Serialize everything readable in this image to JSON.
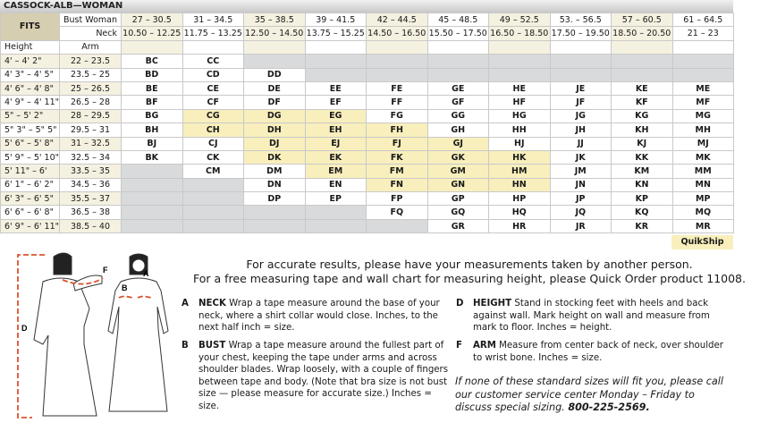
{
  "title": "CASSOCK-ALB—WOMAN",
  "header": {
    "fits": "FITS",
    "bust_label": "Bust Woman",
    "neck_label": "Neck",
    "height_label": "Height",
    "arm_label": "Arm",
    "bust": [
      "27 – 30.5",
      "31 – 34.5",
      "35 – 38.5",
      "39 – 41.5",
      "42 – 44.5",
      "45 – 48.5",
      "49 – 52.5",
      "53. – 56.5",
      "57 – 60.5",
      "61 – 64.5"
    ],
    "neck": [
      "10.50 – 12.25",
      "11.75 – 13.25",
      "12.50 – 14.50",
      "13.75 – 15.25",
      "14.50 – 16.50",
      "15.50 – 17.50",
      "16.50 – 18.50",
      "17.50 – 19.50",
      "18.50 – 20.50",
      "21 – 23"
    ]
  },
  "rows": [
    {
      "height": "4' – 4' 2\"",
      "arm": "22 – 23.5",
      "cells": [
        "BC",
        "CC",
        "",
        "",
        "",
        "",
        "",
        "",
        "",
        ""
      ]
    },
    {
      "height": "4' 3\" – 4' 5\"",
      "arm": "23.5 – 25",
      "cells": [
        "BD",
        "CD",
        "DD",
        "",
        "",
        "",
        "",
        "",
        "",
        ""
      ]
    },
    {
      "height": "4' 6\" – 4' 8\"",
      "arm": "25 – 26.5",
      "cells": [
        "BE",
        "CE",
        "DE",
        "EE",
        "FE",
        "GE",
        "HE",
        "JE",
        "KE",
        "ME"
      ]
    },
    {
      "height": "4' 9\" – 4' 11\"",
      "arm": "26.5 – 28",
      "cells": [
        "BF",
        "CF",
        "DF",
        "EF",
        "FF",
        "GF",
        "HF",
        "JF",
        "KF",
        "MF"
      ]
    },
    {
      "height": "5\" – 5' 2\"",
      "arm": "28 – 29.5",
      "cells": [
        "BG",
        "CG",
        "DG",
        "EG",
        "FG",
        "GG",
        "HG",
        "JG",
        "KG",
        "MG"
      ]
    },
    {
      "height": "5\" 3\" – 5\" 5\"",
      "arm": "29.5 – 31",
      "cells": [
        "BH",
        "CH",
        "DH",
        "EH",
        "FH",
        "GH",
        "HH",
        "JH",
        "KH",
        "MH"
      ]
    },
    {
      "height": "5' 6\" – 5' 8\"",
      "arm": "31 – 32.5",
      "cells": [
        "BJ",
        "CJ",
        "DJ",
        "EJ",
        "FJ",
        "GJ",
        "HJ",
        "JJ",
        "KJ",
        "MJ"
      ]
    },
    {
      "height": "5' 9\" – 5' 10\"",
      "arm": "32.5 – 34",
      "cells": [
        "BK",
        "CK",
        "DK",
        "EK",
        "FK",
        "GK",
        "HK",
        "JK",
        "KK",
        "MK"
      ]
    },
    {
      "height": "5' 11\" – 6'",
      "arm": "33.5 – 35",
      "cells": [
        "",
        "CM",
        "DM",
        "EM",
        "FM",
        "GM",
        "HM",
        "JM",
        "KM",
        "MM"
      ]
    },
    {
      "height": "6' 1\" – 6' 2\"",
      "arm": "34.5 – 36",
      "cells": [
        "",
        "",
        "DN",
        "EN",
        "FN",
        "GN",
        "HN",
        "JN",
        "KN",
        "MN"
      ]
    },
    {
      "height": "6' 3\" – 6' 5\"",
      "arm": "35.5 – 37",
      "cells": [
        "",
        "",
        "DP",
        "EP",
        "FP",
        "GP",
        "HP",
        "JP",
        "KP",
        "MP"
      ]
    },
    {
      "height": "6' 6\" – 6' 8\"",
      "arm": "36.5 – 38",
      "cells": [
        "",
        "",
        "",
        "",
        "FQ",
        "GQ",
        "HQ",
        "JQ",
        "KQ",
        "MQ"
      ]
    },
    {
      "height": "6' 9\" – 6' 11\"",
      "arm": "38.5 – 40",
      "cells": [
        "",
        "",
        "",
        "",
        "",
        "GR",
        "HR",
        "JR",
        "KR",
        "MR"
      ]
    }
  ],
  "quikship_cells": [
    "CG",
    "DG",
    "EG",
    "CH",
    "DH",
    "EH",
    "FH",
    "DJ",
    "EJ",
    "FJ",
    "GJ",
    "DK",
    "EK",
    "FK",
    "GK",
    "HK",
    "EM",
    "FM",
    "GM",
    "HM",
    "FN",
    "GN",
    "HN"
  ],
  "quikship_label": "QuikShip",
  "colors": {
    "quikship": "#f8efbc",
    "unavailable": "#d9dadc",
    "cream": "#f5f1e0",
    "fits": "#d6ceb0",
    "tape": "#d9532f"
  },
  "figure_labels": {
    "a": "A",
    "b": "B",
    "d": "D",
    "f": "F"
  },
  "instructions": {
    "line1": "For accurate results, please have your measurements taken by another person.",
    "line2": "For a free measuring tape and wall chart for measuring height, please Quick Order product 11008.",
    "items": [
      {
        "letter": "A",
        "title": "NECK",
        "text": " Wrap a tape measure around the base of your neck, where a shirt collar would close. Inches, to the next half inch = size."
      },
      {
        "letter": "B",
        "title": "BUST",
        "text": " Wrap a tape measure around the fullest part of your chest, keeping the tape under arms and across shoulder blades. Wrap loosely, with a couple of fingers between tape and body. (Note that bra size is not bust size — please measure for accurate size.) Inches = size."
      },
      {
        "letter": "D",
        "title": "HEIGHT",
        "text": " Stand in stocking feet with heels and back against wall. Mark height on wall and measure from mark to floor. Inches = height."
      },
      {
        "letter": "F",
        "title": "ARM",
        "text": " Measure from center back of neck, over shoulder to wrist bone. Inches = size."
      }
    ],
    "note": "If none of these standard sizes will fit you, please call our customer service center Monday – Friday to discuss special sizing. ",
    "phone": "800-225-2569."
  }
}
